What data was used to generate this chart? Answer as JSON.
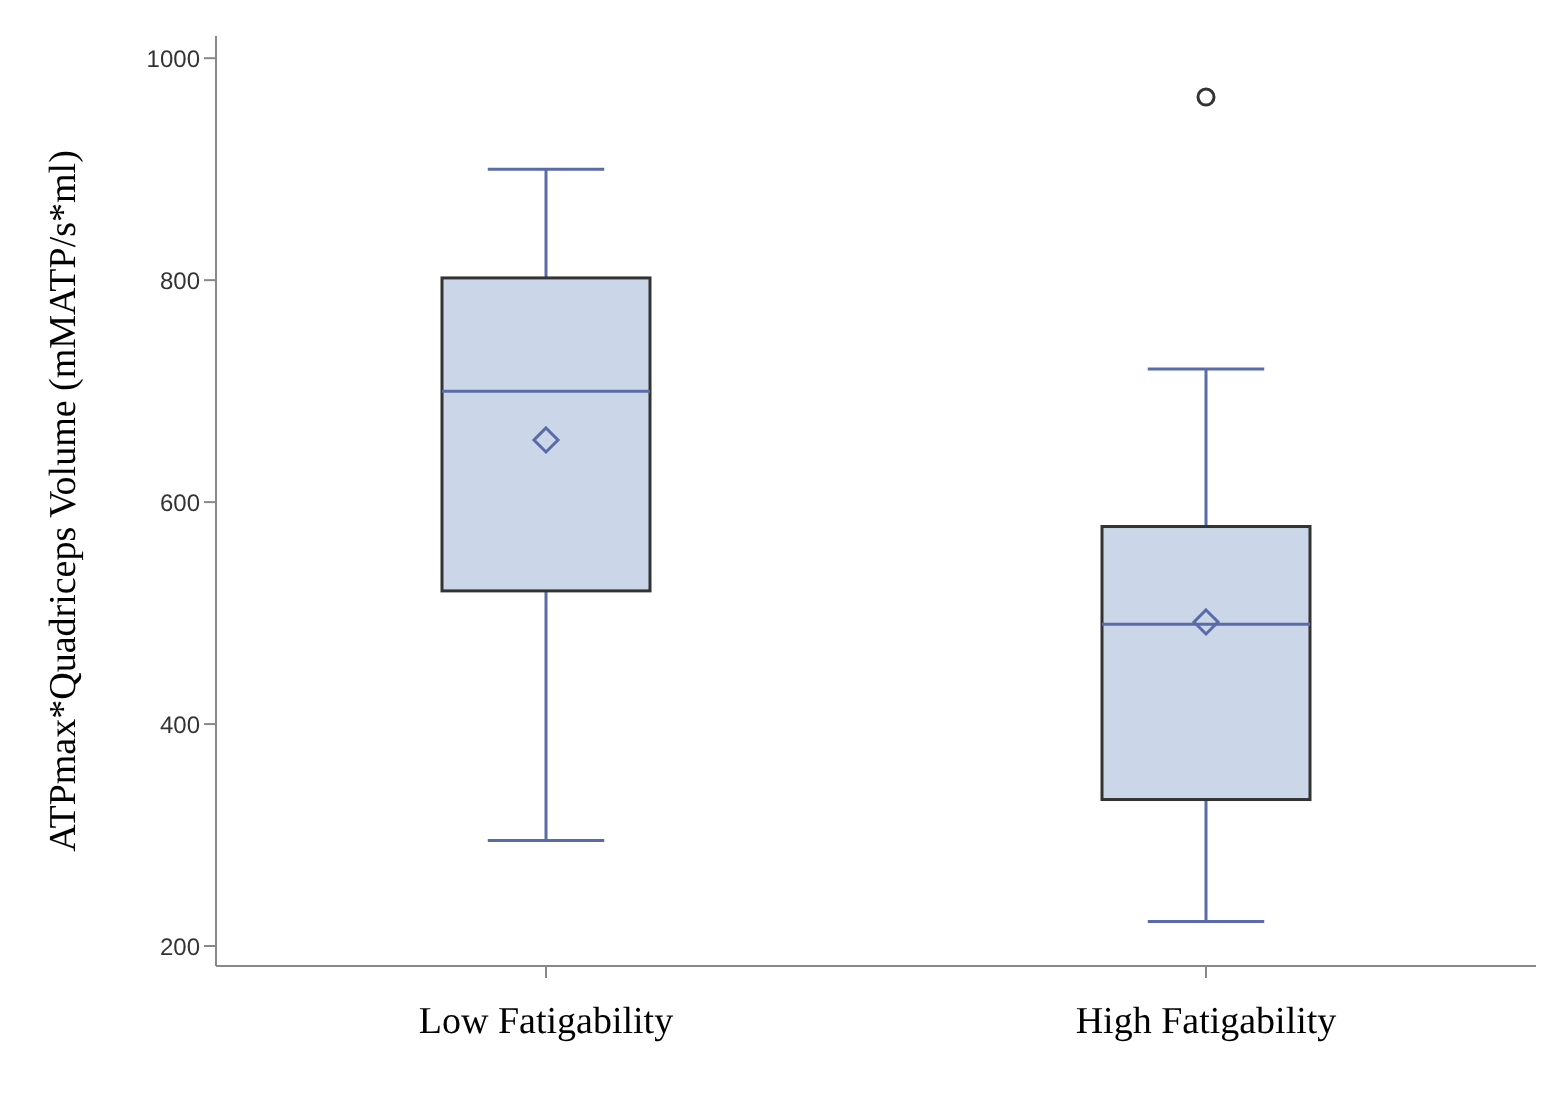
{
  "chart_data": {
    "type": "box",
    "ylabel": "ATPmax*Quadriceps Volume (mMATP/s*ml)",
    "categories": [
      "Low Fatigability",
      "High Fatigability"
    ],
    "boxes": [
      {
        "low": 295,
        "q1": 520,
        "median": 700,
        "q3": 802,
        "high": 900,
        "mean": 656
      },
      {
        "low": 222,
        "q1": 332,
        "median": 490,
        "q3": 578,
        "high": 720,
        "mean": 492,
        "outliers": [
          965
        ]
      }
    ],
    "color": "#cbd7e8",
    "ylim": [
      182,
      1020
    ],
    "yticks": [
      200,
      400,
      600,
      800,
      1000
    ],
    "grid": false,
    "legend": false
  }
}
